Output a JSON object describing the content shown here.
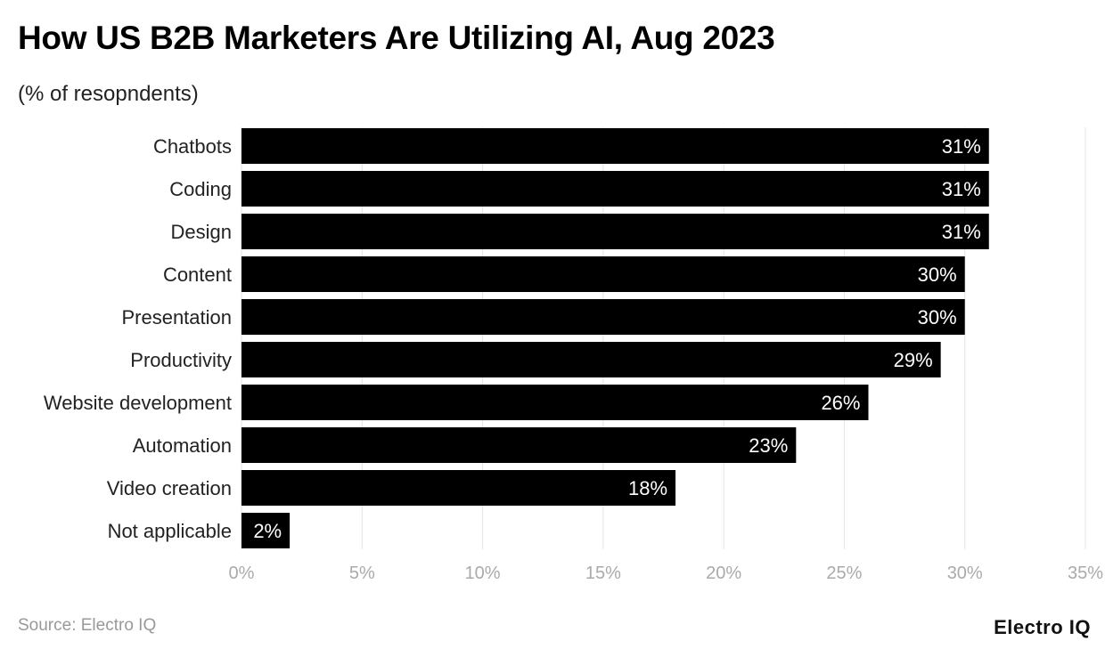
{
  "title": "How US B2B Marketers Are Utilizing AI, Aug 2023",
  "subtitle": "(% of resopndents)",
  "source": "Source: Electro IQ",
  "logo": "Electro IQ",
  "chart_data": {
    "type": "bar",
    "orientation": "horizontal",
    "categories": [
      "Chatbots",
      "Coding",
      "Design",
      "Content",
      "Presentation",
      "Productivity",
      "Website development",
      "Automation",
      "Video creation",
      "Not applicable"
    ],
    "values": [
      31,
      31,
      31,
      30,
      30,
      29,
      26,
      23,
      18,
      2
    ],
    "data_labels": [
      "31%",
      "31%",
      "31%",
      "30%",
      "30%",
      "29%",
      "26%",
      "23%",
      "18%",
      "2%"
    ],
    "xlim": [
      0,
      35
    ],
    "x_ticks": [
      0,
      5,
      10,
      15,
      20,
      25,
      30,
      35
    ],
    "x_tick_labels": [
      "0%",
      "5%",
      "10%",
      "15%",
      "20%",
      "25%",
      "30%",
      "35%"
    ],
    "grid": true,
    "bar_color": "#000000",
    "label_color": "#ffffff",
    "grid_color": "#e5e5e5",
    "tick_color": "#aaaaaa"
  }
}
